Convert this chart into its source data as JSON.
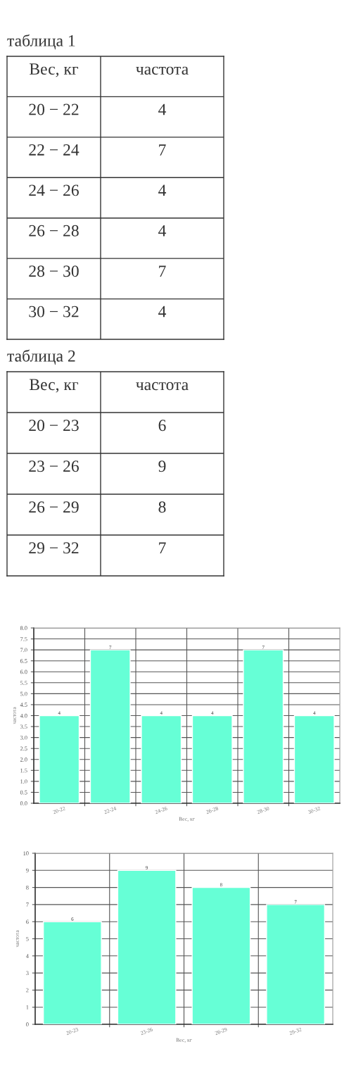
{
  "chart_data": [
    {
      "type": "other",
      "title": "таблица 1",
      "annotations": [
        "Вес, кг",
        "частота",
        "20 − 22",
        "4",
        "22 − 24",
        "7",
        "24 − 26",
        "4",
        "26 − 28",
        "4",
        "28 − 30",
        "7",
        "30 − 32",
        "4"
      ]
    },
    {
      "type": "other",
      "title": "таблица 2",
      "annotations": [
        "Вес, кг",
        "частота",
        "20 − 23",
        "6",
        "23 − 26",
        "9",
        "26 − 29",
        "8",
        "29 − 32",
        "7"
      ]
    },
    {
      "type": "bar",
      "categories": [
        "20-22",
        "22-24",
        "24-26",
        "26-28",
        "28-30",
        "30-32"
      ],
      "values": [
        4,
        7,
        4,
        4,
        7,
        4
      ],
      "color": "#66ffd6",
      "ylim": [
        0,
        8
      ],
      "yticks": [
        {
          "value": 0,
          "label": "0.0"
        },
        {
          "value": 0.5,
          "label": "0.5"
        },
        {
          "value": 1,
          "label": "1.0"
        },
        {
          "value": 1.5,
          "label": "1.5"
        },
        {
          "value": 2,
          "label": "2.0"
        },
        {
          "value": 2.5,
          "label": "2.5"
        },
        {
          "value": 3,
          "label": "3.0"
        },
        {
          "value": 3.5,
          "label": "3.5"
        },
        {
          "value": 4,
          "label": "4.0"
        },
        {
          "value": 4.5,
          "label": "4.5"
        },
        {
          "value": 5,
          "label": "5.0"
        },
        {
          "value": 5.5,
          "label": "5.5"
        },
        {
          "value": 6,
          "label": "6.0"
        },
        {
          "value": 6.5,
          "label": "6.5"
        },
        {
          "value": 7,
          "label": "7.0"
        },
        {
          "value": 7.5,
          "label": "7.5"
        },
        {
          "value": 8,
          "label": "8.0"
        }
      ],
      "xlabel": "Вес, кг",
      "ylabel": "частота",
      "data_labels": true,
      "grid": true
    },
    {
      "type": "bar",
      "categories": [
        "20-23",
        "23-26",
        "26-29",
        "29-32"
      ],
      "values": [
        6,
        9,
        8,
        7
      ],
      "color": "#66ffd6",
      "ylim": [
        0,
        10
      ],
      "yticks": [
        0,
        1,
        2,
        3,
        4,
        5,
        6,
        7,
        8,
        9,
        10
      ],
      "xlabel": "Вес, кг",
      "ylabel": "частота",
      "data_labels": true,
      "grid": true
    }
  ]
}
